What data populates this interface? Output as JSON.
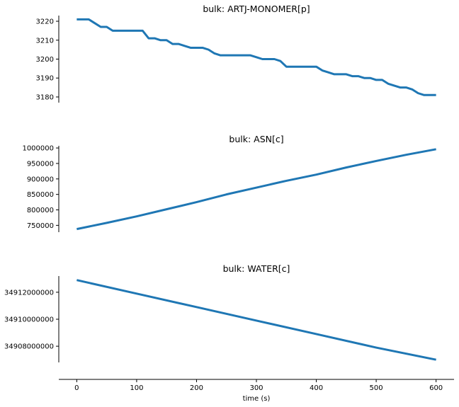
{
  "chart_data": [
    {
      "type": "line",
      "title": "bulk: ARTJ-MONOMER[p]",
      "xlabel": "",
      "ylabel": "",
      "xlim": [
        -30,
        630
      ],
      "ylim": [
        3177,
        3223
      ],
      "yticks": [
        3180,
        3190,
        3200,
        3210,
        3220
      ],
      "ytick_labels": [
        "3180",
        "3190",
        "3200",
        "3210",
        "3220"
      ],
      "color": "#1f77b4",
      "x": [
        0,
        10,
        20,
        30,
        40,
        50,
        60,
        70,
        80,
        90,
        100,
        110,
        120,
        130,
        140,
        150,
        160,
        170,
        180,
        190,
        200,
        210,
        220,
        230,
        240,
        250,
        260,
        270,
        280,
        290,
        300,
        310,
        320,
        330,
        340,
        350,
        360,
        370,
        380,
        390,
        400,
        410,
        420,
        430,
        440,
        450,
        460,
        470,
        480,
        490,
        500,
        510,
        520,
        530,
        540,
        550,
        560,
        570,
        580,
        590,
        600
      ],
      "y": [
        3221,
        3221,
        3221,
        3219,
        3217,
        3217,
        3215,
        3215,
        3215,
        3215,
        3215,
        3215,
        3211,
        3211,
        3210,
        3210,
        3208,
        3208,
        3207,
        3206,
        3206,
        3206,
        3205,
        3203,
        3202,
        3202,
        3202,
        3202,
        3202,
        3202,
        3201,
        3200,
        3200,
        3200,
        3199,
        3196,
        3196,
        3196,
        3196,
        3196,
        3196,
        3194,
        3193,
        3192,
        3192,
        3192,
        3191,
        3191,
        3190,
        3190,
        3189,
        3189,
        3187,
        3186,
        3185,
        3185,
        3184,
        3182,
        3181,
        3181,
        3181
      ]
    },
    {
      "type": "line",
      "title": "bulk: ASN[c]",
      "xlabel": "",
      "ylabel": "",
      "xlim": [
        -30,
        630
      ],
      "ylim": [
        728000,
        1007000
      ],
      "yticks": [
        750000,
        800000,
        850000,
        900000,
        950000,
        1000000
      ],
      "ytick_labels": [
        "750000",
        "800000",
        "850000",
        "900000",
        "950000",
        "1000000"
      ],
      "color": "#1f77b4",
      "x": [
        0,
        50,
        100,
        150,
        200,
        250,
        300,
        350,
        400,
        450,
        500,
        550,
        600
      ],
      "y": [
        738000,
        758000,
        779000,
        802000,
        825000,
        850000,
        872000,
        894000,
        914000,
        937000,
        958000,
        978000,
        996000
      ]
    },
    {
      "type": "line",
      "title": "bulk: WATER[c]",
      "xlabel": "time (s)",
      "ylabel": "",
      "xlim": [
        -30,
        630
      ],
      "ylim": [
        34906800000,
        34913200000
      ],
      "yticks": [
        34908000000,
        34910000000,
        34912000000
      ],
      "ytick_labels": [
        "34908000000",
        "34910000000",
        "34912000000"
      ],
      "xticks": [
        0,
        100,
        200,
        300,
        400,
        500,
        600
      ],
      "xtick_labels": [
        "0",
        "100",
        "200",
        "300",
        "400",
        "500",
        "600"
      ],
      "color": "#1f77b4",
      "x": [
        0,
        100,
        200,
        300,
        400,
        500,
        600
      ],
      "y": [
        34912900000,
        34911900000,
        34910900000,
        34909900000,
        34908900000,
        34907900000,
        34907000000
      ]
    }
  ]
}
